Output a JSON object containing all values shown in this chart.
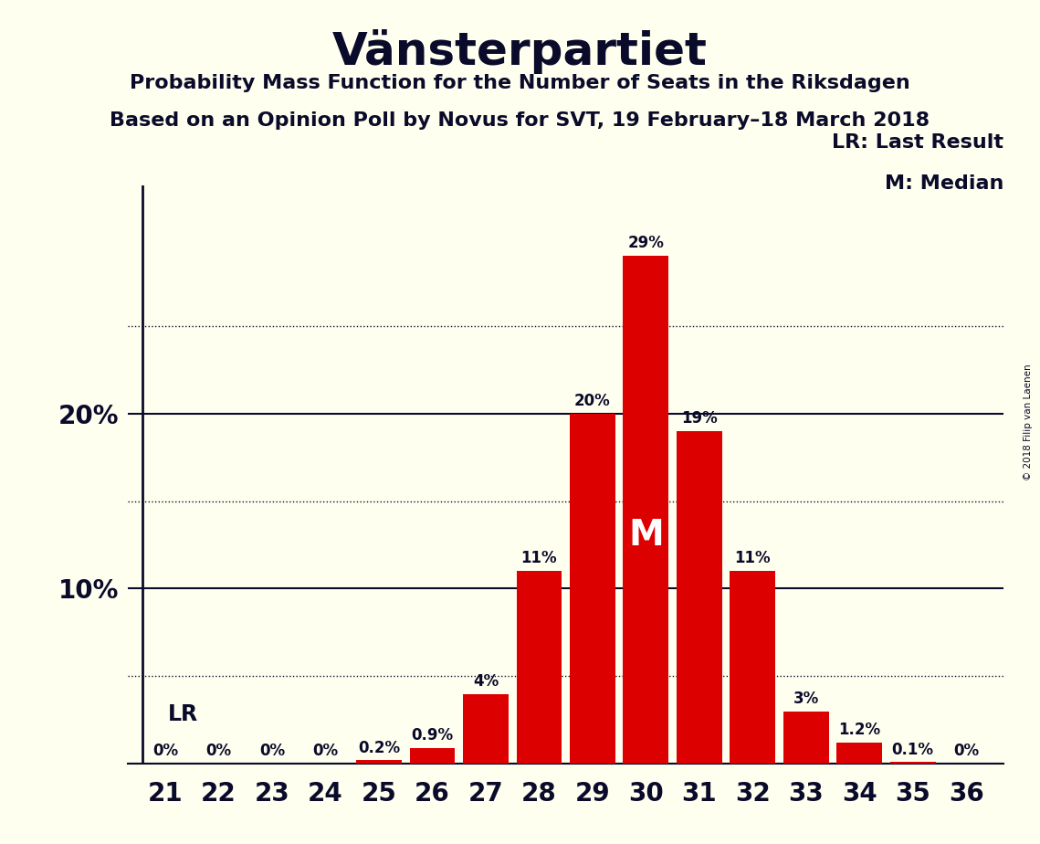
{
  "title": "Vänsterpartiet",
  "subtitle1": "Probability Mass Function for the Number of Seats in the Riksdagen",
  "subtitle2": "Based on an Opinion Poll by Novus for SVT, 19 February–18 March 2018",
  "copyright": "© 2018 Filip van Laenen",
  "seats": [
    21,
    22,
    23,
    24,
    25,
    26,
    27,
    28,
    29,
    30,
    31,
    32,
    33,
    34,
    35,
    36
  ],
  "probabilities": [
    0.0,
    0.0,
    0.0,
    0.0,
    0.2,
    0.9,
    4.0,
    11.0,
    20.0,
    29.0,
    19.0,
    11.0,
    3.0,
    1.2,
    0.1,
    0.0
  ],
  "bar_color": "#dd0000",
  "background_color": "#fffff0",
  "text_color": "#0a0a2a",
  "lr_seat": 21,
  "median_seat": 30,
  "ylim": [
    0,
    33
  ],
  "ytick_positions": [
    10,
    20
  ],
  "ytick_labels": [
    "10%",
    "20%"
  ],
  "dotted_lines": [
    5.0,
    15.0,
    25.0
  ],
  "solid_lines": [
    0,
    10,
    20
  ],
  "legend_lr": "LR: Last Result",
  "legend_m": "M: Median",
  "median_label": "M",
  "bar_width": 0.85
}
